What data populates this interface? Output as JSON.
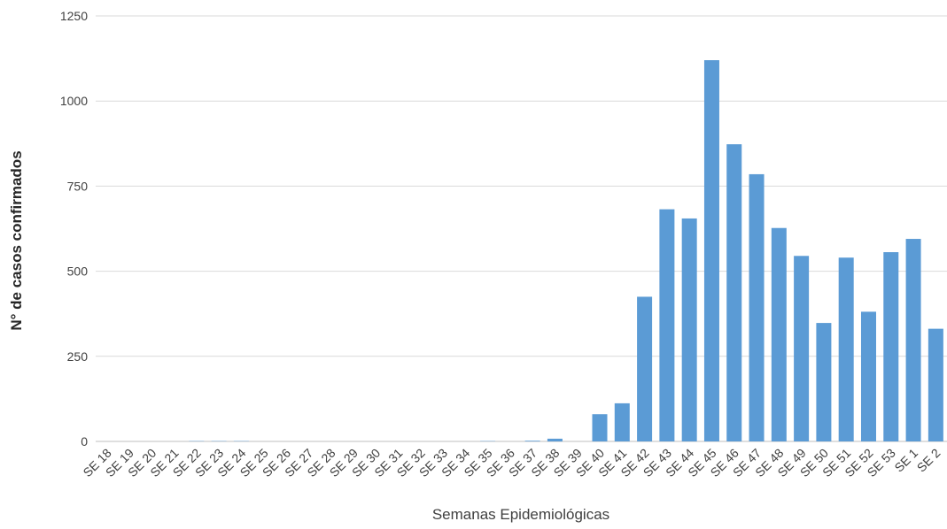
{
  "chart_data": {
    "type": "bar",
    "title": "",
    "xlabel": "Semanas Epidemiológicas",
    "ylabel": "N° de casos confirmados",
    "ylim": [
      0,
      1250
    ],
    "yticks": [
      0,
      250,
      500,
      750,
      1000,
      1250
    ],
    "grid": true,
    "bar_color": "#5B9BD5",
    "categories": [
      "SE 18",
      "SE 19",
      "SE 20",
      "SE 21",
      "SE 22",
      "SE 23",
      "SE 24",
      "SE 25",
      "SE 26",
      "SE 27",
      "SE 28",
      "SE 29",
      "SE 30",
      "SE 31",
      "SE 32",
      "SE 33",
      "SE 34",
      "SE 35",
      "SE 36",
      "SE 37",
      "SE 38",
      "SE 39",
      "SE 40",
      "SE 41",
      "SE 42",
      "SE 43",
      "SE 44",
      "SE 45",
      "SE 46",
      "SE 47",
      "SE 48",
      "SE 49",
      "SE 50",
      "SE 51",
      "SE 52",
      "SE 53",
      "SE 1",
      "SE 2"
    ],
    "values": [
      0,
      0,
      0,
      0,
      1,
      1,
      1,
      0,
      0,
      0,
      0,
      0,
      0,
      0,
      0,
      0,
      0,
      1,
      0,
      2,
      8,
      0,
      80,
      112,
      425,
      682,
      655,
      1120,
      873,
      785,
      627,
      545,
      348,
      540,
      381,
      556,
      595,
      331
    ]
  }
}
